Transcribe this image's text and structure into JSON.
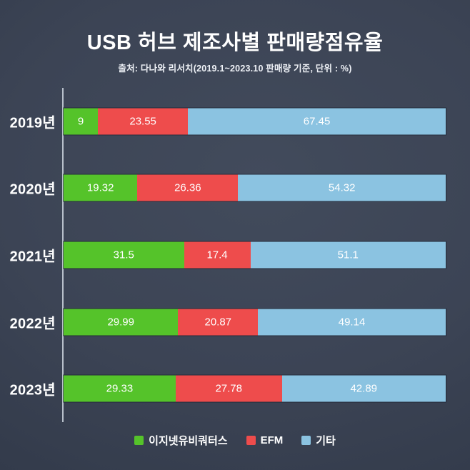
{
  "header": {
    "title": "USB 허브 제조사별 판매량점유율",
    "subtitle": "출처: 다나와 리서치(2019.1~2023.10 판매량 기준, 단위 : %)"
  },
  "chart_data": {
    "type": "bar",
    "orientation": "horizontal",
    "stacked": true,
    "title": "USB 허브 제조사별 판매량점유율",
    "subtitle": "출처: 다나와 리서치(2019.1~2023.10 판매량 기준, 단위 : %)",
    "unit": "%",
    "xlim": [
      0,
      100
    ],
    "grid": false,
    "legend_position": "bottom",
    "categories": [
      "2019년",
      "2020년",
      "2021년",
      "2022년",
      "2023년"
    ],
    "series": [
      {
        "name": "이지넷유비쿼터스",
        "color": "#55c32a",
        "values": [
          9,
          19.32,
          31.5,
          29.99,
          29.33
        ]
      },
      {
        "name": "EFM",
        "color": "#ee4c4c",
        "values": [
          23.55,
          26.36,
          17.4,
          20.87,
          27.78
        ]
      },
      {
        "name": "기타",
        "color": "#8bc3e1",
        "values": [
          67.45,
          54.32,
          51.1,
          49.14,
          42.89
        ]
      }
    ]
  },
  "colors": {
    "background_center": "#424b5c",
    "background_edge": "#2c3342",
    "axis_line": "#b7bfca",
    "text": "#ffffff"
  }
}
